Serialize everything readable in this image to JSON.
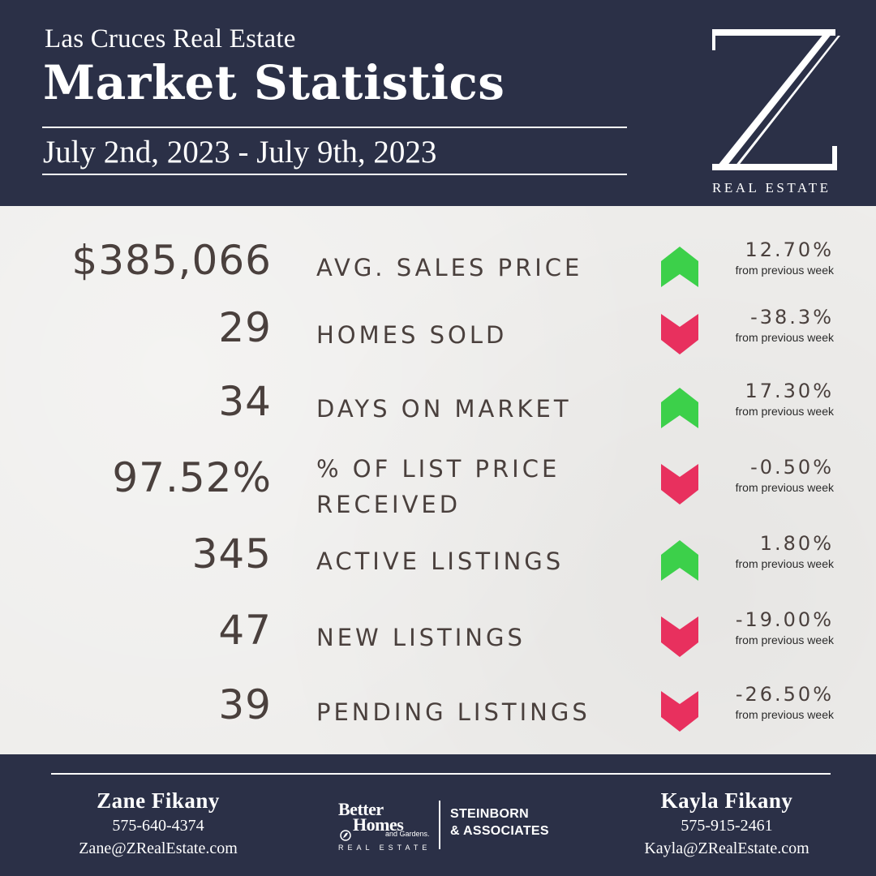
{
  "header": {
    "subtitle": "Las Cruces Real Estate",
    "title": "Market Statistics",
    "date_range": "July 2nd, 2023 - July 9th, 2023",
    "logo_letter": "Z",
    "logo_caption": "REAL ESTATE"
  },
  "stats": [
    {
      "value": "$385,066",
      "label_1": "AVG. SALES PRICE",
      "label_2": "",
      "change": "12.70%",
      "note": "from previous week",
      "direction": "up",
      "arrow_icon": "arrow-up-icon"
    },
    {
      "value": "29",
      "label_1": "HOMES SOLD",
      "label_2": "",
      "change": "-38.3%",
      "note": "from previous week",
      "direction": "down",
      "arrow_icon": "arrow-down-icon"
    },
    {
      "value": "34",
      "label_1": "DAYS ON MARKET",
      "label_2": "",
      "change": "17.30%",
      "note": "from previous week",
      "direction": "up",
      "arrow_icon": "arrow-up-icon"
    },
    {
      "value": "97.52%",
      "label_1": "% OF LIST PRICE",
      "label_2": "RECEIVED",
      "change": "-0.50%",
      "note": "from previous week",
      "direction": "down",
      "arrow_icon": "arrow-down-icon"
    },
    {
      "value": "345",
      "label_1": "ACTIVE LISTINGS",
      "label_2": "",
      "change": "1.80%",
      "note": "from previous week",
      "direction": "up",
      "arrow_icon": "arrow-up-icon"
    },
    {
      "value": "47",
      "label_1": "NEW LISTINGS",
      "label_2": "",
      "change": "-19.00%",
      "note": "from previous week",
      "direction": "down",
      "arrow_icon": "arrow-down-icon"
    },
    {
      "value": "39",
      "label_1": "PENDING LISTINGS",
      "label_2": "",
      "change": "-26.50%",
      "note": "from previous week",
      "direction": "down",
      "arrow_icon": "arrow-down-icon"
    }
  ],
  "footer": {
    "agent_left": {
      "name": "Zane Fikany",
      "phone": "575-640-4374",
      "email": "Zane@ZRealEstate.com"
    },
    "agent_right": {
      "name": "Kayla Fikany",
      "phone": "575-915-2461",
      "email": "Kayla@ZRealEstate.com"
    },
    "brand": {
      "line1": "Better",
      "line2": "Homes",
      "line2b": "and Gardens.",
      "line3": "REAL ESTATE",
      "partner_1": "STEINBORN",
      "partner_2": "& ASSOCIATES"
    }
  },
  "colors": {
    "navy": "#2b3047",
    "up": "#3cd04a",
    "down": "#e8305e",
    "text": "#4a403d",
    "background": "#eeedeb"
  }
}
